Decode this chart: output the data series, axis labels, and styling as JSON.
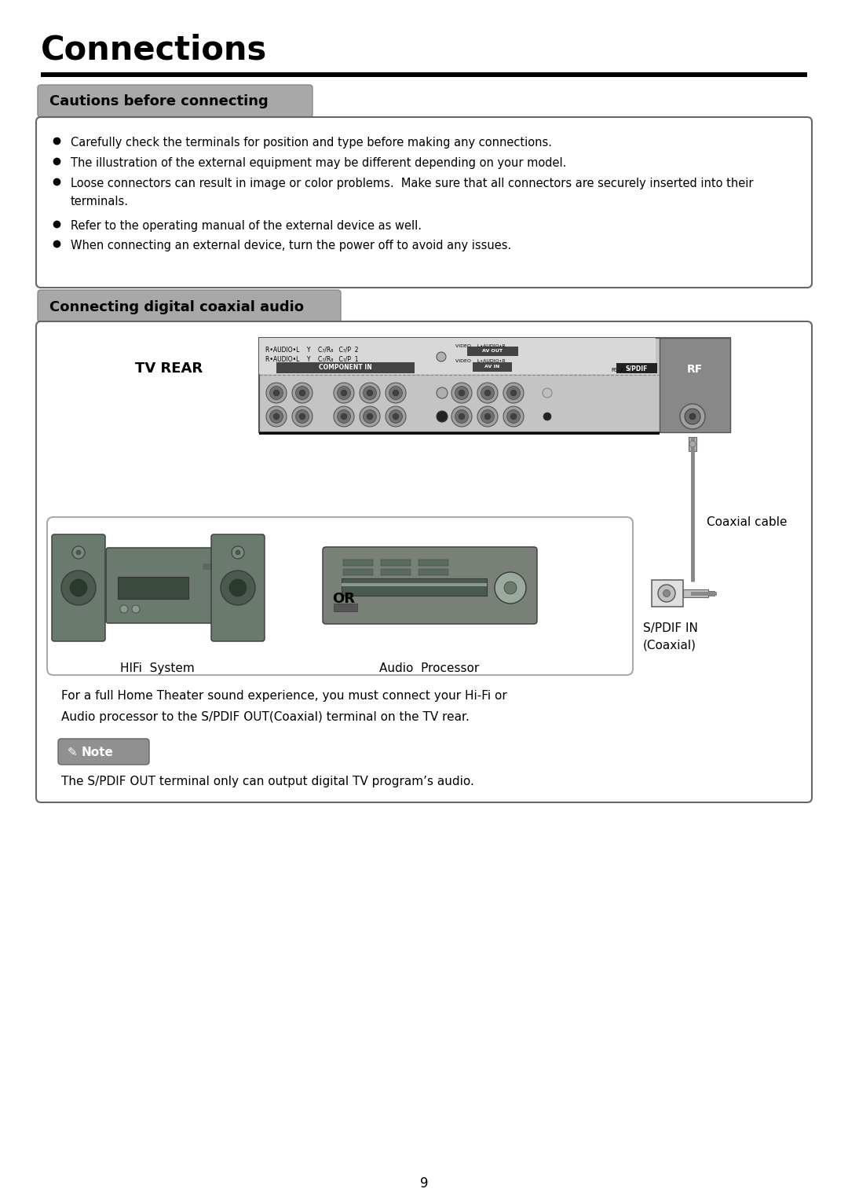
{
  "title": "Connections",
  "section1_title": "Cautions before connecting",
  "section2_title": "Connecting digital coaxial audio",
  "bullet_lines": [
    [
      "Carefully check the terminals for position and type before making any connections."
    ],
    [
      "The illustration of the external equipment may be different depending on your model."
    ],
    [
      "Loose connectors can result in image or color problems.  Make sure that all connectors are securely inserted into their",
      "terminals."
    ],
    [
      "Refer to the operating manual of the external device as well."
    ],
    [
      "When connecting an external device, turn the power off to avoid any issues."
    ]
  ],
  "tv_rear_label": "TV REAR",
  "coaxial_cable_label": "Coaxial cable",
  "spdif_label": "S/PDIF IN\n(Coaxial)",
  "or_label": "OR",
  "hifi_label": "HIFi  System",
  "audio_label": "Audio  Processor",
  "note_text": "The S/PDIF OUT terminal only can output digital TV program’s audio.",
  "body_text_1": "For a full Home Theater sound experience, you must connect your Hi-Fi or",
  "body_text_2": "Audio processor to the S/PDIF OUT(Coaxial) terminal on the TV rear.",
  "page_number": "9",
  "bg_color": "#ffffff",
  "section_bg": "#a8a8a8",
  "panel_bg": "#c8c8c8",
  "panel_label_bg": "#d0d0d0",
  "device_color": "#6a7a6e",
  "note_bg": "#909090"
}
